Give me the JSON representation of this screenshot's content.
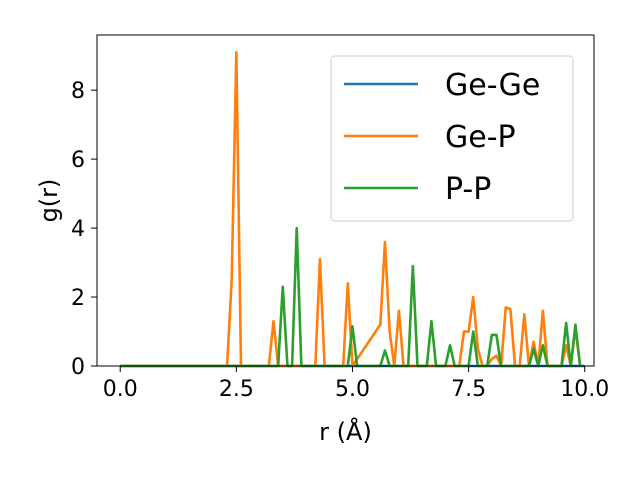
{
  "chart_data": {
    "type": "line",
    "xlabel": "r (Å)",
    "ylabel": "g(r)",
    "xlim": [
      -0.5,
      10.2
    ],
    "ylim": [
      0,
      9.6
    ],
    "xticks": [
      0.0,
      2.5,
      5.0,
      7.5,
      10.0
    ],
    "xtick_labels": [
      "0.0",
      "2.5",
      "5.0",
      "7.5",
      "10.0"
    ],
    "yticks": [
      0,
      2,
      4,
      6,
      8
    ],
    "ytick_labels": [
      "0",
      "2",
      "4",
      "6",
      "8"
    ],
    "grid": false,
    "legend_position": "top-right",
    "series": [
      {
        "name": "Ge-Ge",
        "color": "#1f77b4",
        "x": [
          0.0,
          10.0
        ],
        "y": [
          0,
          0
        ]
      },
      {
        "name": "Ge-P",
        "color": "#ff7f0e",
        "x": [
          0.0,
          2.3,
          2.4,
          2.5,
          2.6,
          3.2,
          3.3,
          3.4,
          4.2,
          4.3,
          4.4,
          4.8,
          4.9,
          5.0,
          5.6,
          5.7,
          5.8,
          5.9,
          6.0,
          6.1,
          7.3,
          7.4,
          7.5,
          7.6,
          7.7,
          7.8,
          7.9,
          8.0,
          8.1,
          8.2,
          8.3,
          8.4,
          8.5,
          8.6,
          8.7,
          8.8,
          8.9,
          9.0,
          9.1,
          9.2,
          9.5,
          9.6,
          9.7,
          9.8,
          9.9
        ],
        "y": [
          0,
          0,
          2.5,
          9.1,
          0,
          0,
          1.3,
          0,
          0,
          3.1,
          0,
          0,
          2.4,
          0,
          1.2,
          3.6,
          1.0,
          0,
          1.6,
          0,
          0,
          1.0,
          1.0,
          2.0,
          0.5,
          0,
          0,
          0.2,
          0.3,
          0,
          1.7,
          1.65,
          0,
          0,
          1.5,
          0,
          0.7,
          0,
          1.6,
          0,
          0,
          0.6,
          0,
          1.1,
          0
        ]
      },
      {
        "name": "P-P",
        "color": "#2ca02c",
        "x": [
          0.0,
          3.4,
          3.5,
          3.6,
          3.7,
          3.8,
          3.9,
          4.9,
          5.0,
          5.1,
          5.6,
          5.7,
          5.8,
          6.2,
          6.3,
          6.4,
          6.6,
          6.7,
          6.8,
          7.0,
          7.1,
          7.2,
          7.5,
          7.6,
          7.7,
          7.9,
          8.0,
          8.1,
          8.2,
          8.8,
          8.9,
          9.0,
          9.1,
          9.2,
          9.5,
          9.6,
          9.7,
          9.8,
          9.9
        ],
        "y": [
          0,
          0,
          2.3,
          0,
          0,
          4.0,
          0,
          0,
          1.15,
          0,
          0,
          0.45,
          0,
          0,
          2.9,
          0,
          0,
          1.3,
          0,
          0,
          0.6,
          0,
          0,
          1.0,
          0,
          0,
          0.9,
          0.9,
          0,
          0,
          0.5,
          0,
          0.6,
          0,
          0,
          1.25,
          0,
          1.2,
          0
        ]
      }
    ]
  }
}
